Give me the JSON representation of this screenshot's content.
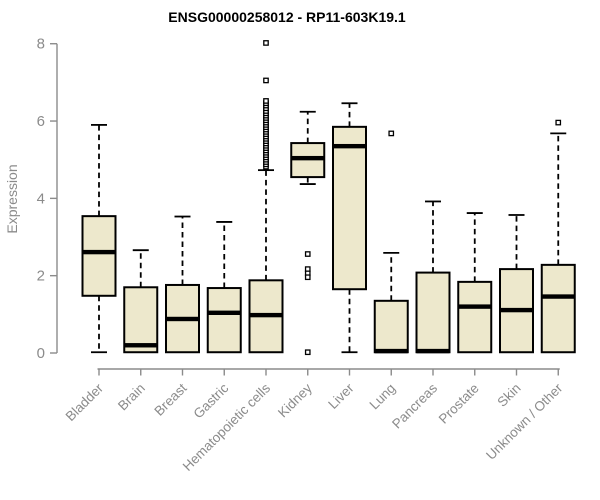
{
  "chart_data": {
    "type": "boxplot",
    "title": "ENSG00000258012 - RP11-603K19.1",
    "xlabel": "",
    "ylabel": "Expression",
    "ylim": [
      0,
      8
    ],
    "yticks": [
      0,
      2,
      4,
      6,
      8
    ],
    "grid": false,
    "legend": "none",
    "categories": [
      "Bladder",
      "Brain",
      "Breast",
      "Gastric",
      "Hematopoietic cells",
      "Kidney",
      "Liver",
      "Lung",
      "Pancreas",
      "Prostate",
      "Skin",
      "Unknown / Other"
    ],
    "boxes": [
      {
        "label": "Bladder",
        "lo": 0.02,
        "q1": 1.48,
        "median": 2.61,
        "q3": 3.54,
        "hi": 5.9,
        "outliers": []
      },
      {
        "label": "Brain",
        "lo": 0.02,
        "q1": 0.02,
        "median": 0.2,
        "q3": 1.7,
        "hi": 2.66,
        "outliers": []
      },
      {
        "label": "Breast",
        "lo": 0.02,
        "q1": 0.02,
        "median": 0.88,
        "q3": 1.76,
        "hi": 3.53,
        "outliers": []
      },
      {
        "label": "Gastric",
        "lo": 0.02,
        "q1": 0.02,
        "median": 1.04,
        "q3": 1.68,
        "hi": 3.39,
        "outliers": []
      },
      {
        "label": "Hematopoietic cells",
        "lo": 0.02,
        "q1": 0.02,
        "median": 0.98,
        "q3": 1.88,
        "hi": 4.73,
        "outliers": [
          4.82,
          4.88,
          4.94,
          5.0,
          5.06,
          5.12,
          5.18,
          5.24,
          5.3,
          5.36,
          5.42,
          5.48,
          5.54,
          5.6,
          5.66,
          5.72,
          5.78,
          5.84,
          5.9,
          5.96,
          6.02,
          6.08,
          6.14,
          6.2,
          6.26,
          6.33,
          6.4,
          6.46,
          6.52,
          7.05,
          8.02
        ]
      },
      {
        "label": "Kidney",
        "lo": 4.37,
        "q1": 4.55,
        "median": 5.04,
        "q3": 5.43,
        "hi": 6.24,
        "outliers": [
          2.56,
          2.17,
          2.06,
          1.96,
          0.02
        ]
      },
      {
        "label": "Liver",
        "lo": 0.02,
        "q1": 1.65,
        "median": 5.35,
        "q3": 5.85,
        "hi": 6.46,
        "outliers": []
      },
      {
        "label": "Lung",
        "lo": 0.02,
        "q1": 0.02,
        "median": 0.05,
        "q3": 1.35,
        "hi": 2.59,
        "outliers": [
          5.68
        ]
      },
      {
        "label": "Pancreas",
        "lo": 0.02,
        "q1": 0.02,
        "median": 0.05,
        "q3": 2.08,
        "hi": 3.92,
        "outliers": []
      },
      {
        "label": "Prostate",
        "lo": 0.02,
        "q1": 0.02,
        "median": 1.2,
        "q3": 1.84,
        "hi": 3.62,
        "outliers": []
      },
      {
        "label": "Skin",
        "lo": 0.02,
        "q1": 0.02,
        "median": 1.11,
        "q3": 2.17,
        "hi": 3.57,
        "outliers": []
      },
      {
        "label": "Unknown / Other",
        "lo": 0.02,
        "q1": 0.02,
        "median": 1.46,
        "q3": 2.28,
        "hi": 5.68,
        "outliers": [
          5.96
        ]
      }
    ],
    "colors": {
      "box_fill": "#EDE8CC",
      "box_stroke": "#000000",
      "median": "#000000",
      "whisker": "#000000",
      "outlier_stroke": "#000000",
      "outlier_fill": "#FFFFFF",
      "axis": "#8B8B8B",
      "tick_label": "#8B8B8B",
      "title": "#000000",
      "background": "#FFFFFF"
    }
  }
}
